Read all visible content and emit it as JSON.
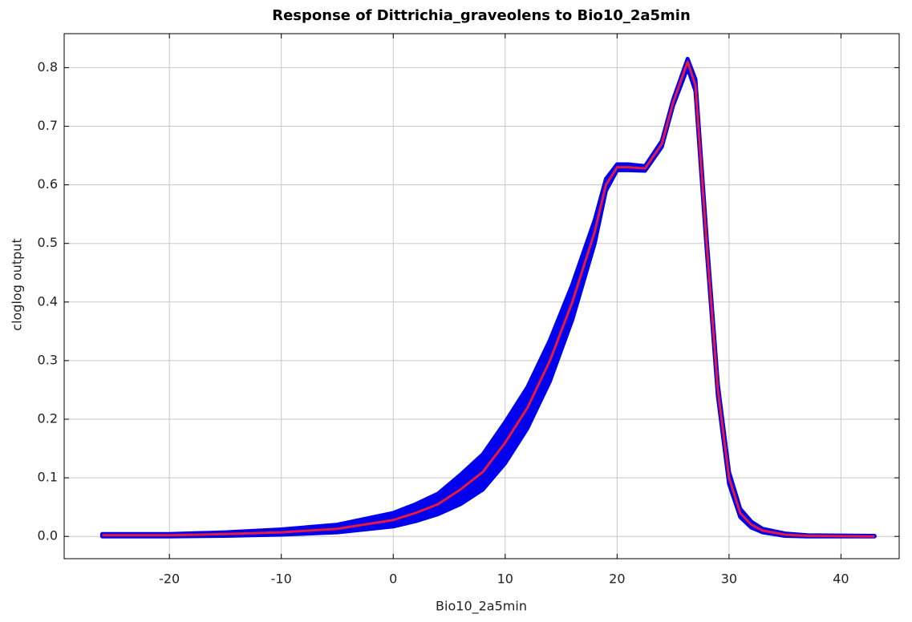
{
  "chart_data": {
    "type": "line",
    "title": "Response of Dittrichia_graveolens to Bio10_2a5min",
    "x_label": "Bio10_2a5min",
    "y_label": "cloglog output",
    "x": [
      -26,
      -20,
      -15,
      -10,
      -5,
      0,
      2,
      4,
      6,
      8,
      10,
      12,
      14,
      16,
      18,
      19,
      20,
      21,
      22.5,
      24,
      25,
      26.3,
      27,
      28,
      29,
      30,
      31,
      32,
      33,
      35,
      37,
      43
    ],
    "series": [
      {
        "color": "#e8193c",
        "values": [
          0.002,
          0.002,
          0.004,
          0.007,
          0.013,
          0.028,
          0.04,
          0.055,
          0.08,
          0.11,
          0.16,
          0.22,
          0.3,
          0.4,
          0.52,
          0.6,
          0.63,
          0.63,
          0.628,
          0.67,
          0.74,
          0.81,
          0.77,
          0.5,
          0.25,
          0.1,
          0.04,
          0.02,
          0.01,
          0.003,
          0.001,
          0.0
        ]
      }
    ],
    "band": {
      "color": "#0000ee",
      "lower": [
        0.0,
        0.0,
        0.001,
        0.003,
        0.007,
        0.017,
        0.026,
        0.038,
        0.055,
        0.08,
        0.125,
        0.185,
        0.265,
        0.37,
        0.5,
        0.59,
        0.625,
        0.625,
        0.624,
        0.665,
        0.735,
        0.8,
        0.76,
        0.49,
        0.24,
        0.09,
        0.033,
        0.015,
        0.007,
        0.001,
        0.0,
        0.0
      ],
      "upper": [
        0.004,
        0.004,
        0.007,
        0.012,
        0.02,
        0.04,
        0.055,
        0.073,
        0.105,
        0.14,
        0.195,
        0.255,
        0.335,
        0.43,
        0.54,
        0.61,
        0.635,
        0.635,
        0.632,
        0.675,
        0.745,
        0.815,
        0.78,
        0.51,
        0.26,
        0.11,
        0.047,
        0.025,
        0.013,
        0.005,
        0.002,
        0.001
      ]
    },
    "xlim": [
      -29.4,
      45.2
    ],
    "ylim": [
      -0.038,
      0.858
    ],
    "xticks": [
      -20,
      -10,
      0,
      10,
      20,
      30,
      40
    ],
    "yticks": [
      {
        "value": 0,
        "label": "0.0"
      },
      0.1,
      0.2,
      0.3,
      0.4,
      0.5,
      0.6,
      0.7,
      0.8
    ],
    "grid": true
  }
}
